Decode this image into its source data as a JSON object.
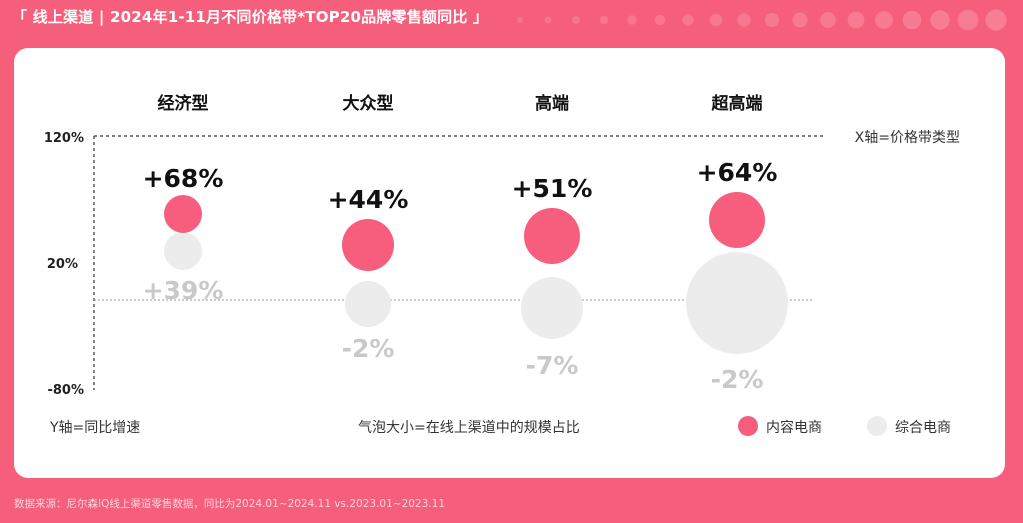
{
  "header": {
    "title": "「 线上渠道 | 2024年1-11月不同价格带*TOP20品牌零售额同比 」"
  },
  "footer": {
    "source": "数据来源：尼尔森IQ线上渠道零售数据，同比为2024.01~2024.11 vs.2023.01~2023.11"
  },
  "colors": {
    "background": "#f65f7b",
    "content_ecommerce": "#f75d7d",
    "comprehensive_ecommerce": "#ececec",
    "negative_label": "#c9c9c9"
  },
  "chart_data": {
    "type": "bubble",
    "categories": [
      "经济型",
      "大众型",
      "高端",
      "超高端"
    ],
    "x_axis_note": "X轴=价格带类型",
    "y_axis_note": "Y轴=同比增速",
    "size_note": "气泡大小=在线上渠道中的规模占比",
    "y_ticks": [
      "120%",
      "20%",
      "-80%"
    ],
    "ylim": [
      -80,
      120
    ],
    "series": [
      {
        "name": "内容电商",
        "color": "#f75d7d",
        "values": [
          68,
          44,
          51,
          64
        ],
        "labels": [
          "+68%",
          "+44%",
          "+51%",
          "+64%"
        ]
      },
      {
        "name": "综合电商",
        "color": "#ececec",
        "values": [
          39,
          -2,
          -7,
          -2
        ],
        "labels": [
          "+39%",
          "-2%",
          "-7%",
          "-2%"
        ]
      }
    ],
    "legend": [
      {
        "name": "内容电商",
        "color": "#f75d7d"
      },
      {
        "name": "综合电商",
        "color": "#ececec"
      }
    ]
  }
}
